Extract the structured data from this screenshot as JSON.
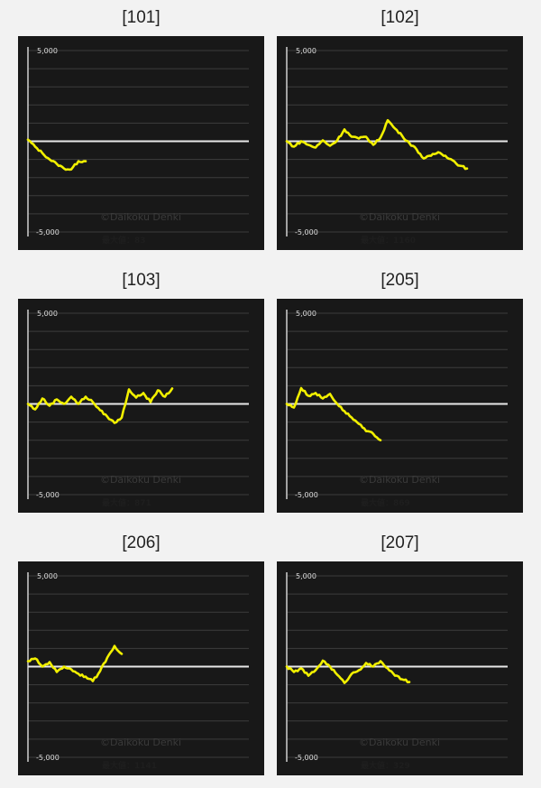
{
  "colors": {
    "background": "#f2f2f2",
    "panel": "#181818",
    "gridline": "#3c3c3c",
    "axis": "#cfcfcf",
    "zero_line": "#e8e8e8",
    "series": "#f2f000"
  },
  "chart_data": [
    {
      "type": "line",
      "title": "[101]",
      "y_ticks": [
        "5,000",
        "-5,000"
      ],
      "ylim": [
        -5000,
        5000
      ],
      "grid": true,
      "watermark": "©Daikoku Denki",
      "max_label": "最大値：83",
      "series": [
        {
          "values": [
            83,
            -300,
            -650,
            -1000,
            -1250,
            -1500,
            -1550,
            -1100,
            -1100
          ]
        }
      ]
    },
    {
      "type": "line",
      "title": "[102]",
      "y_ticks": [
        "5,000",
        "-5,000"
      ],
      "ylim": [
        -5000,
        5000
      ],
      "grid": true,
      "watermark": "©Daikoku Denki",
      "max_label": "最大値：1160",
      "series": [
        {
          "values": [
            0,
            -300,
            0,
            -200,
            -350,
            50,
            -250,
            50,
            650,
            250,
            150,
            250,
            -200,
            200,
            1160,
            700,
            300,
            -100,
            -450,
            -950,
            -800,
            -600,
            -800,
            -1050,
            -1350,
            -1500
          ]
        }
      ]
    },
    {
      "type": "line",
      "title": "[103]",
      "y_ticks": [
        "5,000",
        "-5,000"
      ],
      "ylim": [
        -5000,
        5000
      ],
      "grid": true,
      "watermark": "©Daikoku Denki",
      "max_label": "最大値：871",
      "series": [
        {
          "values": [
            0,
            -300,
            300,
            -100,
            250,
            0,
            400,
            0,
            400,
            100,
            -350,
            -700,
            -1050,
            -750,
            800,
            350,
            600,
            100,
            750,
            400,
            850
          ]
        }
      ]
    },
    {
      "type": "line",
      "title": "[205]",
      "y_ticks": [
        "5,000",
        "-5,000"
      ],
      "ylim": [
        -5000,
        5000
      ],
      "grid": true,
      "watermark": "©Daikoku Denki",
      "max_label": "最大値：869",
      "series": [
        {
          "values": [
            0,
            -200,
            869,
            450,
            600,
            300,
            550,
            0,
            -400,
            -750,
            -1100,
            -1500,
            -1650,
            -2000
          ]
        }
      ]
    },
    {
      "type": "line",
      "title": "[206]",
      "y_ticks": [
        "5,000",
        "-5,000"
      ],
      "ylim": [
        -5000,
        5000
      ],
      "grid": true,
      "watermark": "©Daikoku Denki",
      "max_label": "最大値：1141",
      "series": [
        {
          "values": [
            300,
            450,
            0,
            250,
            -300,
            0,
            -150,
            -400,
            -550,
            -800,
            -250,
            500,
            1141,
            700
          ]
        }
      ]
    },
    {
      "type": "line",
      "title": "[207]",
      "y_ticks": [
        "5,000",
        "-5,000"
      ],
      "ylim": [
        -5000,
        5000
      ],
      "grid": true,
      "watermark": "©Daikoku Denki",
      "max_label": "最大値：329",
      "series": [
        {
          "values": [
            0,
            -300,
            -100,
            -500,
            -200,
            329,
            0,
            -450,
            -900,
            -400,
            -200,
            200,
            0,
            300,
            -100,
            -500,
            -700,
            -850
          ]
        }
      ]
    }
  ]
}
